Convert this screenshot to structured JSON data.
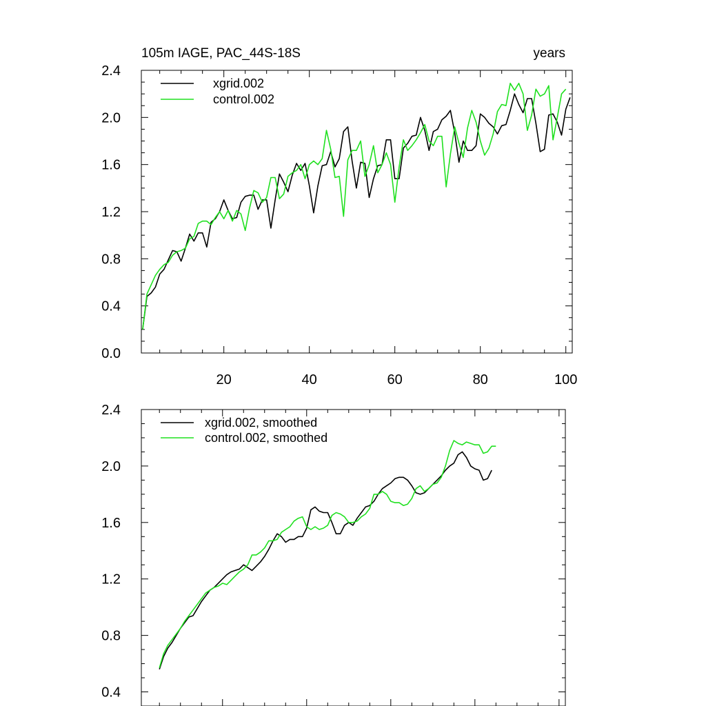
{
  "colors": {
    "series_a": "#000000",
    "series_b": "#1fe01f",
    "axes": "#000000",
    "background": "#ffffff"
  },
  "chart_data": [
    {
      "id": "top",
      "type": "line",
      "title": "105m IAGE, PAC_44S-18S",
      "right_label": "years",
      "xlim": [
        0.7,
        101.5
      ],
      "ylim": [
        0.0,
        2.4
      ],
      "yticks": [
        0.0,
        0.4,
        0.8,
        1.2,
        1.6,
        2.0,
        2.4
      ],
      "ytick_labels": [
        "0.0",
        "0.4",
        "0.8",
        "1.2",
        "1.6",
        "2.0",
        "2.4"
      ],
      "xticks": [
        20,
        40,
        60,
        80,
        100
      ],
      "xtick_labels": [
        "20",
        "40",
        "60",
        "80",
        "100"
      ],
      "x_labels_below": true,
      "legend_position": "top-left",
      "series": [
        {
          "name": "xgrid.002",
          "color_key": "series_a",
          "x_start": 1,
          "values": [
            0.2,
            0.48,
            0.51,
            0.56,
            0.67,
            0.71,
            0.79,
            0.87,
            0.86,
            0.78,
            0.89,
            1.01,
            0.95,
            1.02,
            1.02,
            0.9,
            1.11,
            1.14,
            1.2,
            1.3,
            1.21,
            1.14,
            1.15,
            1.28,
            1.33,
            1.34,
            1.34,
            1.22,
            1.3,
            1.3,
            1.06,
            1.3,
            1.52,
            1.45,
            1.37,
            1.51,
            1.61,
            1.55,
            1.61,
            1.42,
            1.19,
            1.42,
            1.59,
            1.6,
            1.71,
            1.58,
            1.65,
            1.88,
            1.92,
            1.63,
            1.4,
            1.62,
            1.61,
            1.32,
            1.48,
            1.59,
            1.6,
            1.81,
            1.81,
            1.48,
            1.48,
            1.74,
            1.78,
            1.84,
            1.85,
            2.0,
            1.89,
            1.72,
            1.88,
            1.9,
            1.98,
            2.01,
            2.06,
            1.87,
            1.62,
            1.8,
            1.72,
            1.72,
            1.76,
            2.03,
            2.0,
            1.95,
            1.92,
            1.86,
            1.93,
            1.94,
            2.06,
            2.2,
            2.11,
            2.04,
            2.16,
            2.16,
            1.95,
            1.71,
            1.73,
            2.02,
            2.03,
            1.96,
            1.85,
            2.07,
            2.17
          ]
        },
        {
          "name": "control.002",
          "color_key": "series_b",
          "x_start": 1,
          "values": [
            0.2,
            0.5,
            0.58,
            0.66,
            0.71,
            0.75,
            0.77,
            0.83,
            0.86,
            0.87,
            0.89,
            0.97,
            0.99,
            1.1,
            1.12,
            1.12,
            1.09,
            1.15,
            1.2,
            1.14,
            1.21,
            1.12,
            1.21,
            1.18,
            1.04,
            1.23,
            1.38,
            1.36,
            1.28,
            1.32,
            1.49,
            1.49,
            1.31,
            1.35,
            1.5,
            1.53,
            1.55,
            1.6,
            1.48,
            1.6,
            1.63,
            1.6,
            1.65,
            1.89,
            1.73,
            1.49,
            1.5,
            1.16,
            1.64,
            1.72,
            1.72,
            1.8,
            1.5,
            1.6,
            1.76,
            1.53,
            1.6,
            1.7,
            1.6,
            1.28,
            1.58,
            1.81,
            1.72,
            1.76,
            1.81,
            1.87,
            1.94,
            1.8,
            1.76,
            1.84,
            1.84,
            1.41,
            1.69,
            1.92,
            1.78,
            1.66,
            1.91,
            2.06,
            1.96,
            1.8,
            1.68,
            1.74,
            1.86,
            2.05,
            2.11,
            2.1,
            2.29,
            2.23,
            2.29,
            2.2,
            1.89,
            2.02,
            2.24,
            2.18,
            2.2,
            2.27,
            1.81,
            2.0,
            2.2,
            2.24
          ]
        }
      ]
    },
    {
      "id": "bottom",
      "type": "line",
      "title": "",
      "right_label": "",
      "xlim": [
        0.7,
        101.5
      ],
      "ylim": [
        0.3,
        2.4
      ],
      "yticks": [
        0.4,
        0.8,
        1.2,
        1.6,
        2.0,
        2.4
      ],
      "ytick_labels": [
        "0.4",
        "0.8",
        "1.2",
        "1.6",
        "2.0",
        "2.4"
      ],
      "xticks": [
        20,
        40,
        60,
        80,
        100
      ],
      "xtick_labels": [],
      "x_labels_below": false,
      "legend_position": "top-left",
      "series": [
        {
          "name": "xgrid.002, smoothed",
          "color_key": "series_a",
          "x_start": 5,
          "values": [
            0.56,
            0.65,
            0.71,
            0.75,
            0.8,
            0.85,
            0.89,
            0.93,
            0.94,
            0.99,
            1.04,
            1.08,
            1.12,
            1.14,
            1.17,
            1.2,
            1.23,
            1.25,
            1.26,
            1.27,
            1.3,
            1.28,
            1.26,
            1.29,
            1.32,
            1.36,
            1.41,
            1.47,
            1.52,
            1.5,
            1.46,
            1.48,
            1.48,
            1.5,
            1.5,
            1.56,
            1.69,
            1.71,
            1.68,
            1.67,
            1.67,
            1.6,
            1.52,
            1.52,
            1.58,
            1.6,
            1.58,
            1.63,
            1.67,
            1.71,
            1.72,
            1.75,
            1.8,
            1.84,
            1.86,
            1.88,
            1.91,
            1.92,
            1.92,
            1.9,
            1.86,
            1.81,
            1.8,
            1.81,
            1.84,
            1.87,
            1.9,
            1.93,
            1.97,
            2.0,
            2.02,
            2.08,
            2.1,
            2.06,
            2.0,
            1.98,
            1.97,
            1.9,
            1.91,
            1.97
          ]
        },
        {
          "name": "control.002, smoothed",
          "color_key": "series_b",
          "x_start": 5,
          "values": [
            0.57,
            0.67,
            0.73,
            0.77,
            0.81,
            0.85,
            0.9,
            0.94,
            0.98,
            1.02,
            1.06,
            1.1,
            1.12,
            1.14,
            1.15,
            1.17,
            1.16,
            1.19,
            1.22,
            1.25,
            1.27,
            1.3,
            1.37,
            1.37,
            1.39,
            1.42,
            1.47,
            1.47,
            1.48,
            1.53,
            1.55,
            1.57,
            1.61,
            1.63,
            1.64,
            1.57,
            1.55,
            1.57,
            1.55,
            1.56,
            1.58,
            1.65,
            1.67,
            1.66,
            1.64,
            1.6,
            1.6,
            1.61,
            1.64,
            1.66,
            1.7,
            1.8,
            1.8,
            1.82,
            1.8,
            1.75,
            1.74,
            1.74,
            1.72,
            1.73,
            1.77,
            1.84,
            1.86,
            1.82,
            1.84,
            1.87,
            1.88,
            1.92,
            2.0,
            2.11,
            2.18,
            2.16,
            2.15,
            2.17,
            2.16,
            2.15,
            2.15,
            2.09,
            2.1,
            2.14,
            2.14
          ]
        }
      ]
    }
  ]
}
